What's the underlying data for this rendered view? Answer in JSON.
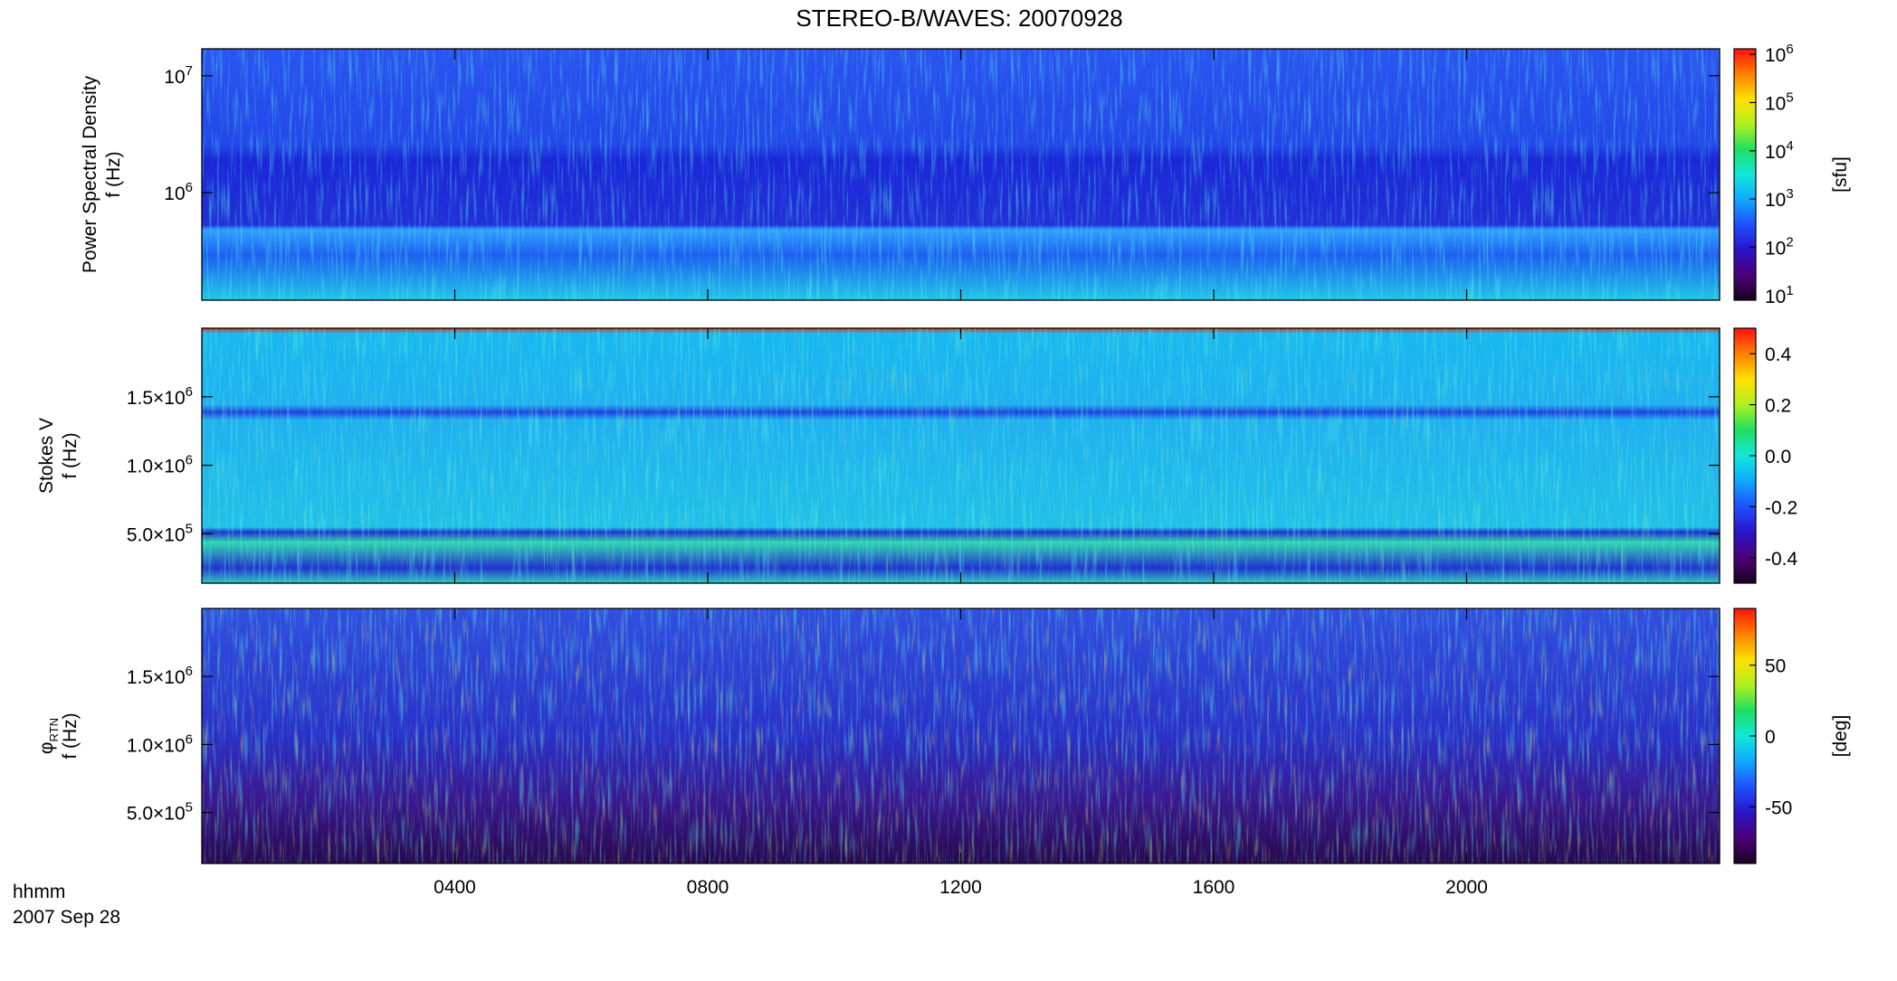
{
  "title": "STEREO-B/WAVES: 20070928",
  "x_label": "hhmm",
  "date_label": "2007 Sep 28",
  "colormap": [
    "#1a0020",
    "#4b0078",
    "#2a14c8",
    "#1e50ff",
    "#10a8ff",
    "#10e8d8",
    "#20e060",
    "#b0f020",
    "#ffe000",
    "#ff8000",
    "#ff1010"
  ],
  "chart_data": [
    {
      "type": "heatmap",
      "ylabel": [
        {
          "text": "Power Spectral Density"
        },
        {
          "text": "f (Hz)"
        }
      ],
      "yscale": "log",
      "ylim": [
        120000,
        17000000
      ],
      "yticks": [
        {
          "value": 1000000,
          "label": "10",
          "sup": "6"
        },
        {
          "value": 10000000,
          "label": "10",
          "sup": "7"
        }
      ],
      "colorbar": {
        "scale": "log",
        "lim": [
          8,
          1300000
        ],
        "label": "[sfu]",
        "ticks": [
          {
            "value": 10,
            "label": "10",
            "sup": "1"
          },
          {
            "value": 100,
            "label": "10",
            "sup": "2"
          },
          {
            "value": 1000,
            "label": "10",
            "sup": "3"
          },
          {
            "value": 10000,
            "label": "10",
            "sup": "4"
          },
          {
            "value": 100000,
            "label": "10",
            "sup": "5"
          },
          {
            "value": 1000000,
            "label": "10",
            "sup": "6"
          }
        ]
      }
    },
    {
      "type": "heatmap",
      "ylabel": [
        {
          "text": "Stokes V"
        },
        {
          "text": "f (Hz)"
        }
      ],
      "yscale": "linear",
      "ylim": [
        140000,
        2000000
      ],
      "yticks": [
        {
          "value": 500000,
          "label": "5.0×10",
          "sup": "5"
        },
        {
          "value": 1000000,
          "label": "1.0×10",
          "sup": "6"
        },
        {
          "value": 1500000,
          "label": "1.5×10",
          "sup": "6"
        }
      ],
      "colorbar": {
        "scale": "linear",
        "lim": [
          -0.5,
          0.5
        ],
        "ticks": [
          -0.4,
          -0.2,
          {
            "value": 0,
            "label": "0.0"
          },
          0.2,
          0.4
        ]
      }
    },
    {
      "type": "heatmap",
      "ylabel": [
        {
          "text": "φ",
          "sub": "RTN"
        },
        {
          "text": "f (Hz)"
        }
      ],
      "yscale": "linear",
      "ylim": [
        125000,
        2000000
      ],
      "yticks": [
        {
          "value": 500000,
          "label": "5.0×10",
          "sup": "5"
        },
        {
          "value": 1000000,
          "label": "1.0×10",
          "sup": "6"
        },
        {
          "value": 1500000,
          "label": "1.5×10",
          "sup": "6"
        }
      ],
      "xlim": [
        0,
        24
      ],
      "xticks": [
        {
          "value": 4,
          "label": "0400"
        },
        {
          "value": 8,
          "label": "0800"
        },
        {
          "value": 12,
          "label": "1200"
        },
        {
          "value": 16,
          "label": "1600"
        },
        {
          "value": 20,
          "label": "2000"
        }
      ],
      "colorbar": {
        "scale": "linear",
        "lim": [
          -90,
          90
        ],
        "label": "[deg]",
        "ticks": [
          -50,
          0,
          50
        ]
      }
    }
  ]
}
